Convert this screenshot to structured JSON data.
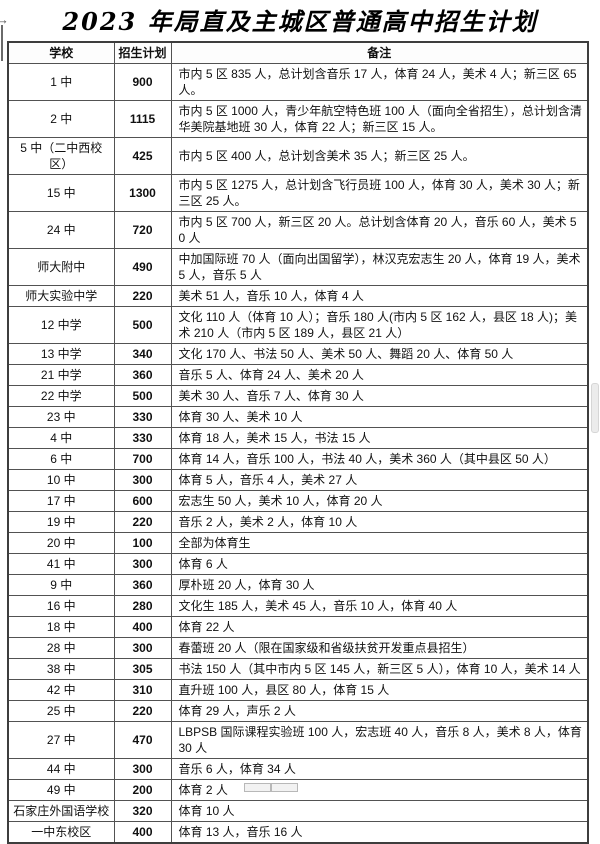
{
  "title": "2023 年局直及主城区普通高中招生计划",
  "icons": {
    "tab_arrow": "→"
  },
  "table": {
    "headers": [
      "学校",
      "招生计划",
      "备注"
    ],
    "rows": [
      {
        "school": "1 中",
        "plan": "900",
        "remark": "市内 5 区 835 人，总计划含音乐 17 人，体育 24 人，美术 4 人；新三区 65 人。"
      },
      {
        "school": "2 中",
        "plan": "1115",
        "remark": "市内 5 区 1000 人，青少年航空特色班 100 人（面向全省招生），总计划含清华美院基地班 30 人，体育 22 人；新三区 15 人。"
      },
      {
        "school": "5 中（二中西校区）",
        "plan": "425",
        "remark": "市内 5 区 400 人，总计划含美术 35 人；新三区 25 人。"
      },
      {
        "school": "15 中",
        "plan": "1300",
        "remark": "市内 5 区 1275 人，总计划含飞行员班 100 人，体育 30 人，美术 30 人；新三区 25 人。"
      },
      {
        "school": "24 中",
        "plan": "720",
        "remark": "市内 5 区 700 人，新三区 20 人。总计划含体育 20 人，音乐 60 人，美术 50 人"
      },
      {
        "school": "师大附中",
        "plan": "490",
        "remark": "中加国际班 70 人（面向出国留学），林汉克宏志生 20 人，体育 19 人，美术 5 人，音乐 5 人"
      },
      {
        "school": "师大实验中学",
        "plan": "220",
        "remark": "美术 51 人，音乐 10 人，体育 4 人"
      },
      {
        "school": "12 中学",
        "plan": "500",
        "remark": "文化 110 人（体育 10 人）；音乐 180 人(市内 5 区 162 人，县区 18 人)；美术 210 人（市内 5 区 189 人，县区 21 人）"
      },
      {
        "school": "13 中学",
        "plan": "340",
        "remark": "文化 170 人、书法 50 人、美术 50 人、舞蹈 20 人、体育 50 人"
      },
      {
        "school": "21 中学",
        "plan": "360",
        "remark": "音乐 5 人、体育 24 人、美术 20 人"
      },
      {
        "school": "22 中学",
        "plan": "500",
        "remark": "美术 30 人、音乐 7 人、体育 30 人"
      },
      {
        "school": "23 中",
        "plan": "330",
        "remark": "体育 30 人、美术 10 人"
      },
      {
        "school": "4 中",
        "plan": "330",
        "remark": "体育 18 人，美术 15 人，书法 15 人"
      },
      {
        "school": "6 中",
        "plan": "700",
        "remark": "体育 14 人，音乐 100 人，书法 40 人，美术 360 人（其中县区 50 人）"
      },
      {
        "school": "10 中",
        "plan": "300",
        "remark": "体育 5 人，音乐 4 人，美术 27 人"
      },
      {
        "school": "17 中",
        "plan": "600",
        "remark": "宏志生 50 人，美术 10 人，体育 20 人"
      },
      {
        "school": "19 中",
        "plan": "220",
        "remark": "音乐 2 人，美术 2 人，体育 10 人"
      },
      {
        "school": "20 中",
        "plan": "100",
        "remark": "全部为体育生"
      },
      {
        "school": "41 中",
        "plan": "300",
        "remark": "体育 6 人"
      },
      {
        "school": "9 中",
        "plan": "360",
        "remark": "厚朴班 20 人，体育 30 人"
      },
      {
        "school": "16 中",
        "plan": "280",
        "remark": "文化生 185 人，美术 45 人，音乐 10 人，体育 40 人"
      },
      {
        "school": "18 中",
        "plan": "400",
        "remark": "体育 22 人"
      },
      {
        "school": "28 中",
        "plan": "300",
        "remark": "春蕾班 20 人（限在国家级和省级扶贫开发重点县招生）"
      },
      {
        "school": "38 中",
        "plan": "305",
        "remark": "书法 150 人（其中市内 5 区 145 人，新三区 5 人），体育 10 人，美术 14 人"
      },
      {
        "school": "42 中",
        "plan": "310",
        "remark": "直升班 100 人，县区 80 人，体育 15 人"
      },
      {
        "school": "25 中",
        "plan": "220",
        "remark": "体育 29 人，声乐 2 人"
      },
      {
        "school": "27 中",
        "plan": "470",
        "remark": "LBPSB 国际课程实验班 100 人，宏志班 40 人，音乐 8 人，美术 8 人，体育 30 人"
      },
      {
        "school": "44 中",
        "plan": "300",
        "remark": "音乐 6 人，体育 34 人"
      },
      {
        "school": "49 中",
        "plan": "200",
        "remark": "体育 2 人"
      },
      {
        "school": "石家庄外国语学校",
        "plan": "320",
        "remark": "体育 10 人"
      },
      {
        "school": "一中东校区",
        "plan": "400",
        "remark": "体育 13 人，音乐 16 人"
      }
    ]
  }
}
